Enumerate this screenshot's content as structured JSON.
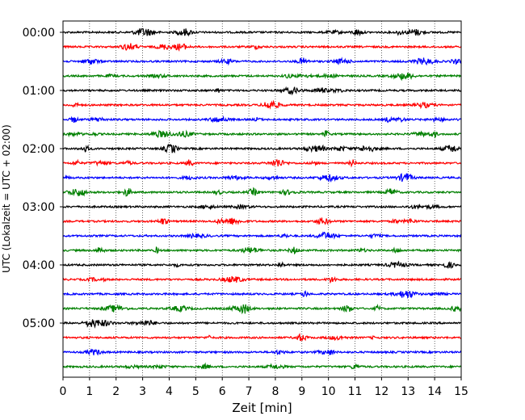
{
  "chart_data": {
    "type": "line",
    "title": "",
    "xlabel": "Zeit  [min]",
    "ylabel": "UTC (Lokalzeit = UTC + 02:00)",
    "xlim": [
      0,
      15
    ],
    "x_ticks": [
      "0",
      "1",
      "2",
      "3",
      "4",
      "5",
      "6",
      "7",
      "8",
      "9",
      "10",
      "11",
      "12",
      "13",
      "14",
      "15"
    ],
    "grid": "vertical-dotted",
    "y_ticks": [
      {
        "label": "00:00",
        "row": 0
      },
      {
        "label": "01:00",
        "row": 4
      },
      {
        "label": "02:00",
        "row": 8
      },
      {
        "label": "03:00",
        "row": 12
      },
      {
        "label": "04:00",
        "row": 16
      },
      {
        "label": "05:00",
        "row": 20
      }
    ],
    "trace_interval_minutes": 15,
    "trace_count": 24,
    "trace_start": "00:00",
    "colors": [
      "#000000",
      "#ff0000",
      "#0000ff",
      "#008000"
    ],
    "series": [
      {
        "start": "00:00",
        "color": "#000000"
      },
      {
        "start": "00:15",
        "color": "#ff0000"
      },
      {
        "start": "00:30",
        "color": "#0000ff"
      },
      {
        "start": "00:45",
        "color": "#008000"
      },
      {
        "start": "01:00",
        "color": "#000000"
      },
      {
        "start": "01:15",
        "color": "#ff0000"
      },
      {
        "start": "01:30",
        "color": "#0000ff"
      },
      {
        "start": "01:45",
        "color": "#008000"
      },
      {
        "start": "02:00",
        "color": "#000000"
      },
      {
        "start": "02:15",
        "color": "#ff0000"
      },
      {
        "start": "02:30",
        "color": "#0000ff"
      },
      {
        "start": "02:45",
        "color": "#008000"
      },
      {
        "start": "03:00",
        "color": "#000000"
      },
      {
        "start": "03:15",
        "color": "#ff0000"
      },
      {
        "start": "03:30",
        "color": "#0000ff"
      },
      {
        "start": "03:45",
        "color": "#008000"
      },
      {
        "start": "04:00",
        "color": "#000000"
      },
      {
        "start": "04:15",
        "color": "#ff0000"
      },
      {
        "start": "04:30",
        "color": "#0000ff"
      },
      {
        "start": "04:45",
        "color": "#008000"
      },
      {
        "start": "05:00",
        "color": "#000000"
      },
      {
        "start": "05:15",
        "color": "#ff0000"
      },
      {
        "start": "05:30",
        "color": "#0000ff"
      },
      {
        "start": "05:45",
        "color": "#008000"
      }
    ]
  }
}
